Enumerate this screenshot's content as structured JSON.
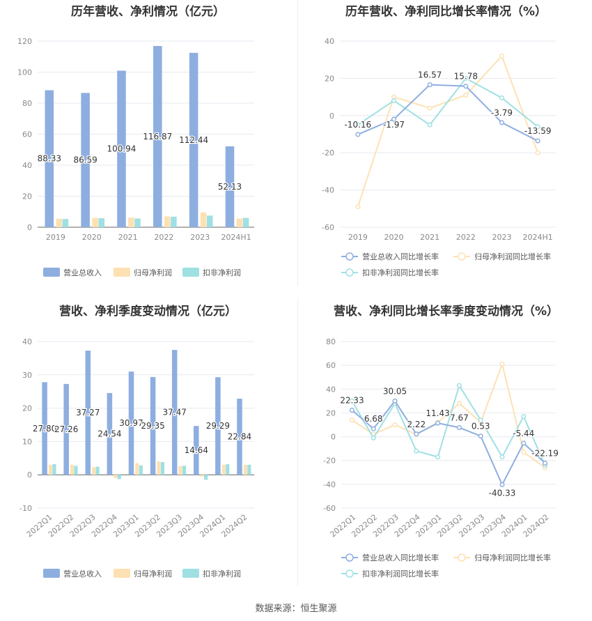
{
  "footer": {
    "source": "数据来源：恒生聚源"
  },
  "colors": {
    "revenue": "#8eaee0",
    "net": "#fde1b3",
    "deduct": "#9fe0e3",
    "line_rev": "#8eaee0",
    "line_net": "#fde1b3",
    "line_deduct": "#9fe0e3"
  },
  "chart_data": [
    {
      "type": "bar",
      "title": "历年营收、净利情况（亿元）",
      "categories": [
        "2019",
        "2020",
        "2021",
        "2022",
        "2023",
        "2024H1"
      ],
      "ylim": [
        0,
        120
      ],
      "yticks": [
        0,
        20,
        40,
        60,
        80,
        100,
        120
      ],
      "series": [
        {
          "name": "营业总收入",
          "values": [
            88.33,
            86.59,
            100.94,
            116.87,
            112.44,
            52.13
          ],
          "labels": [
            "88.33",
            "86.59",
            "100.94",
            "116.87",
            "112.44",
            "52.13"
          ]
        },
        {
          "name": "归母净利润",
          "values": [
            5.5,
            6.0,
            6.2,
            7.0,
            9.5,
            5.6
          ]
        },
        {
          "name": "扣非净利润",
          "values": [
            5.3,
            5.8,
            5.6,
            6.8,
            7.5,
            6.0
          ]
        }
      ],
      "legend_position": "bottom"
    },
    {
      "type": "line",
      "title": "历年营收、净利同比增长率情况（%）",
      "categories": [
        "2019",
        "2020",
        "2021",
        "2022",
        "2023",
        "2024H1"
      ],
      "ylim": [
        -60,
        40
      ],
      "yticks": [
        -60,
        -40,
        -20,
        0,
        20,
        40
      ],
      "series": [
        {
          "name": "营业总收入同比增长率",
          "values": [
            -10.16,
            -1.97,
            16.57,
            15.78,
            -3.79,
            -13.59
          ],
          "labels": [
            "-10.16",
            "-1.97",
            "16.57",
            "15.78",
            "-3.79",
            "-13.59"
          ]
        },
        {
          "name": "归母净利润同比增长率",
          "values": [
            -49,
            10,
            4,
            11,
            32,
            -20
          ]
        },
        {
          "name": "扣非净利润同比增长率",
          "values": [
            -5,
            8,
            -5,
            20,
            9.5,
            -6
          ]
        }
      ],
      "legend_position": "bottom"
    },
    {
      "type": "bar",
      "title": "营收、净利季度变动情况（亿元）",
      "categories": [
        "2022Q1",
        "2022Q2",
        "2022Q3",
        "2022Q4",
        "2023Q1",
        "2023Q2",
        "2023Q3",
        "2023Q4",
        "2024Q1",
        "2024Q2"
      ],
      "ylim": [
        -10,
        40
      ],
      "yticks": [
        -10,
        0,
        10,
        20,
        30,
        40
      ],
      "series": [
        {
          "name": "营业总收入",
          "values": [
            27.8,
            27.26,
            37.27,
            24.54,
            30.97,
            29.35,
            37.47,
            14.64,
            29.29,
            22.84
          ],
          "labels": [
            "27.80",
            "27.26",
            "37.27",
            "24.54",
            "30.97",
            "29.35",
            "37.47",
            "14.64",
            "29.29",
            "22.84"
          ]
        },
        {
          "name": "归母净利润",
          "values": [
            3.0,
            3.0,
            2.3,
            -1.0,
            3.5,
            4.0,
            2.6,
            -0.5,
            3.0,
            3.0
          ]
        },
        {
          "name": "扣非净利润",
          "values": [
            3.2,
            2.7,
            2.4,
            -1.3,
            2.8,
            3.8,
            2.7,
            -1.5,
            3.2,
            3.0
          ]
        }
      ],
      "legend_position": "bottom"
    },
    {
      "type": "line",
      "title": "营收、净利同比增长率季度变动情况（%）",
      "categories": [
        "2022Q1",
        "2022Q2",
        "2022Q3",
        "2022Q4",
        "2023Q1",
        "2023Q2",
        "2023Q3",
        "2023Q4",
        "2024Q1",
        "2024Q2"
      ],
      "ylim": [
        -60,
        80
      ],
      "yticks": [
        -60,
        -40,
        -20,
        0,
        20,
        40,
        60,
        80
      ],
      "series": [
        {
          "name": "营业总收入同比增长率",
          "values": [
            22.33,
            6.68,
            30.05,
            2.22,
            11.43,
            7.67,
            0.53,
            -40.33,
            -5.44,
            -22.19
          ],
          "labels": [
            "22.33",
            "6.68",
            "30.05",
            "2.22",
            "11.43",
            "7.67",
            "0.53",
            "-40.33",
            "-5.44",
            "-22.19"
          ]
        },
        {
          "name": "归母净利润同比增长率",
          "values": [
            14,
            2,
            10,
            2,
            12,
            28,
            12,
            61,
            -13,
            -26
          ]
        },
        {
          "name": "扣非净利润同比增长率",
          "values": [
            30,
            -1,
            28,
            -12,
            -17,
            43,
            14,
            -17,
            17,
            -24
          ]
        }
      ],
      "legend_position": "bottom"
    }
  ]
}
